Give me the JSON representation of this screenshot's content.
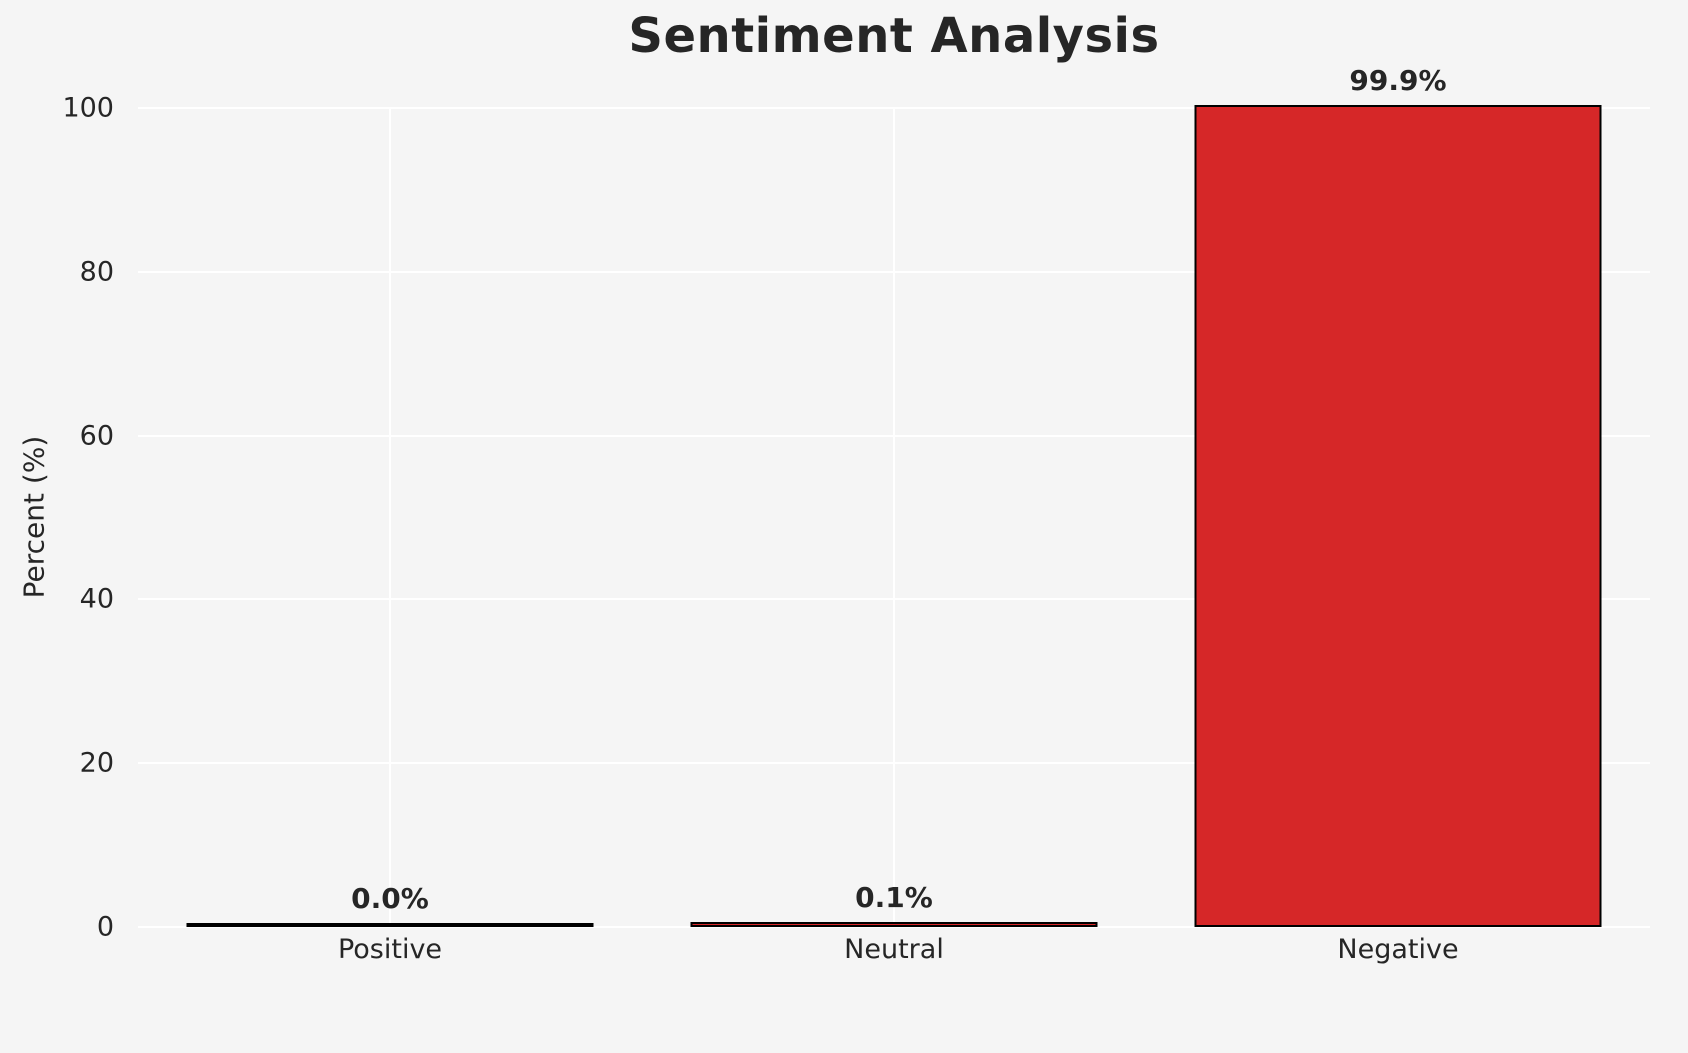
{
  "chart_data": {
    "type": "bar",
    "title": "Sentiment Analysis",
    "ylabel": "Percent (%)",
    "xlabel": "",
    "categories": [
      "Positive",
      "Neutral",
      "Negative"
    ],
    "values": [
      0.0,
      0.1,
      99.9
    ],
    "value_labels": [
      "0.0%",
      "0.1%",
      "99.9%"
    ],
    "yticks": [
      0,
      20,
      40,
      60,
      80,
      100
    ],
    "ylim": [
      0,
      100
    ],
    "grid": "on",
    "legend": "none",
    "bar_color": "#d62728",
    "bar_edge_color": "#000000",
    "grid_color": "#ffffff",
    "background_color": "#f5f5f5",
    "text_color": "#262626"
  }
}
